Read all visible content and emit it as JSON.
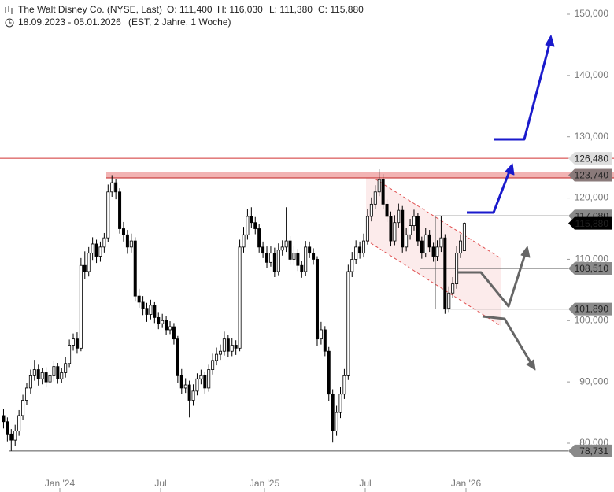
{
  "chart_data": {
    "type": "candlestick",
    "title": "The Walt Disney Co. (NYSE, Last)",
    "header_values": [
      "O: 111,400",
      "H: 116,030",
      "L: 111,380",
      "C: 115,880"
    ],
    "period": "18.09.2023 - 05.01.2026",
    "period_note": "(EST, 2 Jahre, 1 Woche)",
    "x_labels": [
      "Jan '24",
      "Jul",
      "Jan '25",
      "Jul",
      "Jan '26"
    ],
    "ylim": [
      80,
      150
    ],
    "yticks": [
      {
        "value": 80,
        "label": "80,000"
      },
      {
        "value": 90,
        "label": "90,000"
      },
      {
        "value": 100,
        "label": "100,000"
      },
      {
        "value": 110,
        "label": "110,000"
      },
      {
        "value": 120,
        "label": "120,000"
      },
      {
        "value": 130,
        "label": "130,000"
      },
      {
        "value": 140,
        "label": "140,000"
      },
      {
        "value": 150,
        "label": "150,000"
      }
    ],
    "levels": [
      {
        "value": 126.48,
        "label": "126,480"
      },
      {
        "value": 123.74,
        "label": "123,740"
      },
      {
        "value": 117.08,
        "label": "117,080"
      },
      {
        "value": 115.88,
        "label": "115,880"
      },
      {
        "value": 108.51,
        "label": "108,510"
      },
      {
        "value": 101.89,
        "label": "101,890"
      },
      {
        "value": 78.731,
        "label": "78,731"
      }
    ],
    "candles": [
      [
        84.5,
        85.6,
        82.4,
        83.5
      ],
      [
        83.5,
        84.2,
        80.3,
        81.5
      ],
      [
        81.5,
        82.3,
        78.731,
        80.5
      ],
      [
        80.5,
        83,
        79.6,
        82
      ],
      [
        82,
        85.4,
        81.2,
        84.5
      ],
      [
        84.5,
        87.9,
        83.8,
        87
      ],
      [
        87,
        89.8,
        86.2,
        89
      ],
      [
        89,
        92,
        88.1,
        91
      ],
      [
        91,
        93.6,
        90.2,
        92
      ],
      [
        92,
        92.8,
        89.4,
        90.5
      ],
      [
        90.5,
        92.3,
        89.6,
        91.5
      ],
      [
        91.5,
        92.4,
        89.1,
        90
      ],
      [
        90,
        91.9,
        89.2,
        91
      ],
      [
        91,
        93.4,
        90.1,
        92.5
      ],
      [
        92.5,
        93.1,
        89.7,
        90.5
      ],
      [
        90.5,
        92.2,
        89.8,
        91.5
      ],
      [
        91.5,
        94.1,
        90.7,
        93
      ],
      [
        93,
        96.9,
        92.4,
        96
      ],
      [
        96,
        97.9,
        95.1,
        97
      ],
      [
        97,
        98.1,
        94.6,
        95.5
      ],
      [
        95.5,
        110.2,
        95,
        109
      ],
      [
        109,
        111.3,
        106.8,
        108
      ],
      [
        108,
        112,
        107.2,
        111
      ],
      [
        111,
        113.6,
        109.9,
        112.5
      ],
      [
        112.5,
        113.2,
        109.4,
        110.5
      ],
      [
        110.5,
        112.9,
        109.6,
        112
      ],
      [
        112,
        114.3,
        111.1,
        113.5
      ],
      [
        113.5,
        122.2,
        112.8,
        121
      ],
      [
        121,
        123.74,
        120.2,
        122.5
      ],
      [
        122.5,
        123.1,
        119.8,
        121
      ],
      [
        121,
        121.6,
        114.2,
        115
      ],
      [
        115,
        116.1,
        112.9,
        114
      ],
      [
        114,
        114.8,
        110.9,
        112
      ],
      [
        112,
        114.2,
        111.1,
        113
      ],
      [
        113,
        113.6,
        103.1,
        104
      ],
      [
        104,
        105.2,
        102.1,
        103
      ],
      [
        103,
        104,
        100.9,
        102
      ],
      [
        102,
        102.9,
        99.8,
        101
      ],
      [
        101,
        103.4,
        100.2,
        102.5
      ],
      [
        102.5,
        103,
        99.6,
        100.5
      ],
      [
        100.5,
        101.4,
        98.6,
        99.5
      ],
      [
        99.5,
        101.1,
        98.8,
        100
      ],
      [
        100,
        100.7,
        97.6,
        98.5
      ],
      [
        98.5,
        99.9,
        97.8,
        99
      ],
      [
        99,
        99.6,
        96.1,
        97
      ],
      [
        97,
        97.5,
        89.8,
        91
      ],
      [
        91,
        92.1,
        88,
        89
      ],
      [
        89,
        90.6,
        88.2,
        89.5
      ],
      [
        89.5,
        90.2,
        84.2,
        87
      ],
      [
        87,
        89.6,
        86.1,
        88.5
      ],
      [
        88.5,
        91.4,
        87.8,
        90.5
      ],
      [
        90.5,
        92,
        89.6,
        91
      ],
      [
        91,
        91.7,
        88.1,
        89
      ],
      [
        89,
        92.8,
        88.4,
        92
      ],
      [
        92,
        94.6,
        91.2,
        93.5
      ],
      [
        93.5,
        95.6,
        92.7,
        94.5
      ],
      [
        94.5,
        96.1,
        93.6,
        95
      ],
      [
        95,
        98.2,
        94.3,
        97
      ],
      [
        97,
        97.6,
        94.1,
        95
      ],
      [
        95,
        97.1,
        94.2,
        96
      ],
      [
        96,
        96.8,
        94.4,
        95.5
      ],
      [
        95.5,
        113.2,
        95,
        112
      ],
      [
        112,
        115.3,
        111.1,
        114
      ],
      [
        114,
        118.2,
        113.2,
        117
      ],
      [
        117,
        118.5,
        115.1,
        116
      ],
      [
        116,
        116.9,
        114.1,
        115
      ],
      [
        115,
        115.8,
        111.1,
        112
      ],
      [
        112,
        112.9,
        110.2,
        111
      ],
      [
        111,
        112.1,
        108.6,
        109.5
      ],
      [
        109.5,
        112.1,
        108.8,
        111
      ],
      [
        111,
        111.9,
        107.1,
        108
      ],
      [
        108,
        112.6,
        107.4,
        111.5
      ],
      [
        111.5,
        113.1,
        110.6,
        112
      ],
      [
        112,
        118.5,
        111.2,
        113
      ],
      [
        113,
        113.8,
        109.1,
        110
      ],
      [
        110,
        112.2,
        109.1,
        111
      ],
      [
        111,
        111.7,
        108.1,
        109
      ],
      [
        109,
        109.8,
        107,
        108
      ],
      [
        108,
        113,
        107.3,
        112
      ],
      [
        112,
        112.9,
        110.2,
        111
      ],
      [
        111,
        111.8,
        109.1,
        110
      ],
      [
        110,
        110.5,
        95.9,
        97
      ],
      [
        97,
        99.8,
        96.1,
        98.5
      ],
      [
        98.5,
        99.1,
        94.2,
        95
      ],
      [
        95,
        95.7,
        86.9,
        88
      ],
      [
        88,
        88.8,
        80.1,
        82
      ],
      [
        82,
        86.1,
        81.2,
        85
      ],
      [
        85,
        89.2,
        84.1,
        88
      ],
      [
        88,
        92.1,
        87.2,
        91
      ],
      [
        91,
        109.1,
        90.3,
        108
      ],
      [
        108,
        111.2,
        107.1,
        110
      ],
      [
        110,
        113.1,
        109.2,
        112
      ],
      [
        112,
        112.9,
        110.1,
        111
      ],
      [
        111,
        114.2,
        110.3,
        113
      ],
      [
        113,
        118.2,
        112.4,
        117
      ],
      [
        117,
        120.1,
        116.2,
        119
      ],
      [
        119,
        122.1,
        118.2,
        121
      ],
      [
        121,
        124.69,
        120.3,
        123
      ],
      [
        123,
        123.9,
        118.2,
        119
      ],
      [
        119,
        119.8,
        116.1,
        117
      ],
      [
        117,
        117.8,
        112.1,
        113
      ],
      [
        113,
        117.2,
        112.3,
        116
      ],
      [
        116,
        119.1,
        115.2,
        118
      ],
      [
        118,
        118.7,
        111.1,
        112
      ],
      [
        112,
        115.1,
        111.3,
        114
      ],
      [
        114,
        116.6,
        113.2,
        115.5
      ],
      [
        115.5,
        118.1,
        114.7,
        117
      ],
      [
        117,
        117.6,
        112.2,
        113
      ],
      [
        113,
        113.7,
        110.1,
        111
      ],
      [
        111,
        115.1,
        110.3,
        114
      ],
      [
        114,
        114.8,
        111.2,
        112
      ],
      [
        112,
        112.7,
        109.6,
        110.5
      ],
      [
        110.5,
        113.1,
        109.8,
        112
      ],
      [
        112,
        117.08,
        111.2,
        113.5
      ],
      [
        113.5,
        114.1,
        101.1,
        102
      ],
      [
        102,
        105.6,
        101.4,
        104.5
      ],
      [
        104.5,
        107.1,
        103.7,
        106
      ],
      [
        106,
        112.2,
        105.2,
        111
      ],
      [
        111,
        114.1,
        110.2,
        113
      ],
      [
        111.4,
        116.03,
        111.38,
        115.88
      ]
    ]
  }
}
